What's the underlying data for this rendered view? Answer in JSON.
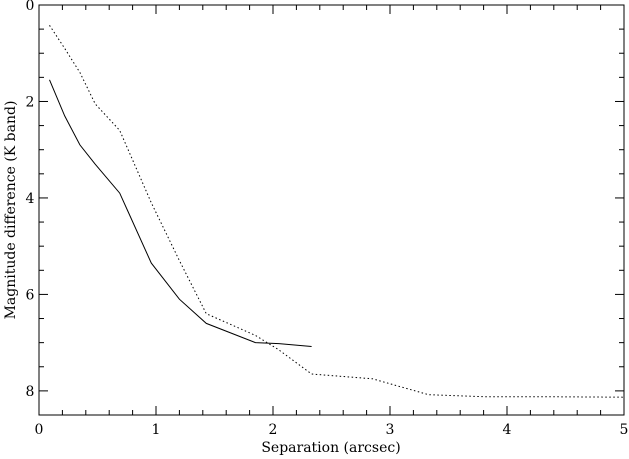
{
  "chart_data": {
    "type": "line",
    "title": "",
    "xlabel": "Separation (arcsec)",
    "ylabel": "Magnitude difference (K band)",
    "xlim": [
      0,
      5
    ],
    "ylim": [
      8.5,
      0
    ],
    "y_inverted": true,
    "grid": false,
    "x_major_ticks": [
      0,
      1,
      2,
      3,
      4,
      5
    ],
    "y_major_ticks": [
      0,
      2,
      4,
      6,
      8
    ],
    "x_tick_labels": [
      "0",
      "1",
      "2",
      "3",
      "4",
      "5"
    ],
    "y_tick_labels": [
      "0",
      "2",
      "4",
      "6",
      "8"
    ],
    "series": [
      {
        "style": "solid",
        "color": "#000000",
        "points": [
          [
            0.09,
            1.55
          ],
          [
            0.22,
            2.3
          ],
          [
            0.35,
            2.9
          ],
          [
            0.48,
            3.3
          ],
          [
            0.69,
            3.9
          ],
          [
            0.96,
            5.35
          ],
          [
            1.2,
            6.1
          ],
          [
            1.43,
            6.6
          ],
          [
            1.85,
            7.0
          ],
          [
            2.05,
            7.02
          ],
          [
            2.33,
            7.08
          ]
        ]
      },
      {
        "style": "dotted",
        "color": "#000000",
        "points": [
          [
            0.09,
            0.42
          ],
          [
            0.22,
            0.9
          ],
          [
            0.35,
            1.4
          ],
          [
            0.48,
            2.05
          ],
          [
            0.69,
            2.6
          ],
          [
            0.96,
            4.1
          ],
          [
            1.2,
            5.3
          ],
          [
            1.43,
            6.4
          ],
          [
            1.85,
            6.85
          ],
          [
            2.05,
            7.15
          ],
          [
            2.33,
            7.65
          ],
          [
            2.85,
            7.75
          ],
          [
            3.33,
            8.08
          ],
          [
            3.8,
            8.12
          ],
          [
            4.3,
            8.12
          ],
          [
            5.0,
            8.13
          ]
        ]
      }
    ]
  }
}
